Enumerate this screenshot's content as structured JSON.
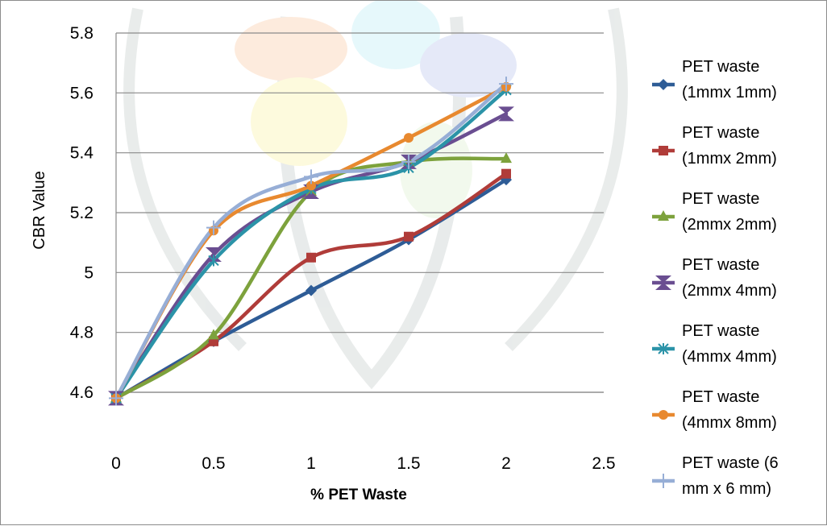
{
  "chart_data": {
    "type": "line",
    "title": "",
    "xlabel": "% PET Waste",
    "ylabel": "CBR Value",
    "xlim": [
      0,
      2.5
    ],
    "ylim": [
      4.6,
      5.8
    ],
    "x_ticks": [
      0,
      0.5,
      1,
      1.5,
      2,
      2.5
    ],
    "y_ticks": [
      4.6,
      4.8,
      5,
      5.2,
      5.4,
      5.6,
      5.8
    ],
    "x_tick_labels": [
      "0",
      "0.5",
      "1",
      "1.5",
      "2",
      "2.5"
    ],
    "y_tick_labels": [
      "4.6",
      "4.8",
      "5",
      "5.2",
      "5.4",
      "5.6",
      "5.8"
    ],
    "grid": "horizontal",
    "legend_position": "right",
    "x": [
      0,
      0.5,
      1,
      1.5,
      2
    ],
    "series": [
      {
        "name": "PET waste (1mmx 1mm)",
        "legend_lines": [
          "PET waste",
          "(1mmx 1mm)"
        ],
        "values": [
          4.58,
          4.77,
          4.94,
          5.11,
          5.31
        ],
        "color": "#2e5c96",
        "marker": "diamond"
      },
      {
        "name": "PET waste (1mmx 2mm)",
        "legend_lines": [
          "PET waste",
          "(1mmx 2mm)"
        ],
        "values": [
          4.58,
          4.77,
          5.05,
          5.12,
          5.33
        ],
        "color": "#b03c39",
        "marker": "square"
      },
      {
        "name": "PET waste (2mmx 2mm)",
        "legend_lines": [
          " PET waste",
          "(2mmx 2mm)"
        ],
        "values": [
          4.58,
          4.79,
          5.27,
          5.37,
          5.38
        ],
        "color": "#7da23c",
        "marker": "triangle"
      },
      {
        "name": "PET waste (2mmx 4mm)",
        "legend_lines": [
          "PET waste",
          "(2mmx 4mm)"
        ],
        "values": [
          4.58,
          5.06,
          5.27,
          5.37,
          5.53
        ],
        "color": "#6a4e91",
        "marker": "hourglass"
      },
      {
        "name": "PET waste (4mmx 4mm)",
        "legend_lines": [
          " PET waste",
          "(4mmx 4mm)"
        ],
        "values": [
          4.58,
          5.04,
          5.28,
          5.35,
          5.61
        ],
        "color": "#2b93a8",
        "marker": "asterisk"
      },
      {
        "name": "PET waste (4mmx 8mm)",
        "legend_lines": [
          "PET waste",
          "(4mmx 8mm)"
        ],
        "values": [
          4.58,
          5.14,
          5.29,
          5.45,
          5.62
        ],
        "color": "#e8892f",
        "marker": "circle"
      },
      {
        "name": "PET waste (6 mm x 6 mm)",
        "legend_lines": [
          " PET waste (6",
          "mm x 6 mm)"
        ],
        "values": [
          4.58,
          5.15,
          5.32,
          5.37,
          5.63
        ],
        "color": "#97aed6",
        "marker": "plus"
      }
    ]
  }
}
